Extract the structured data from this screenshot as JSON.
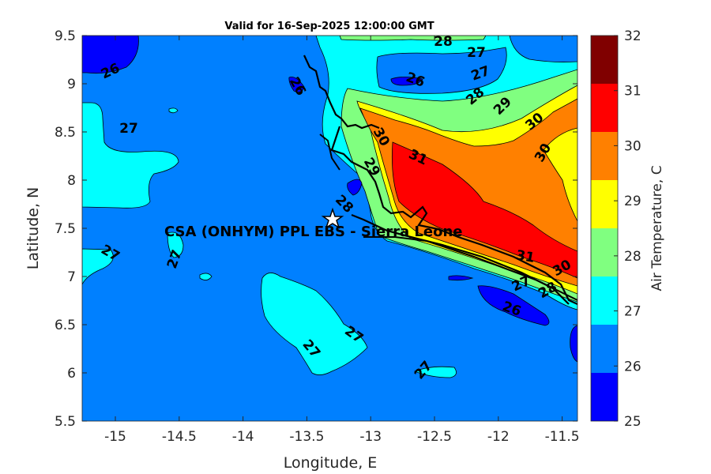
{
  "chart_data": {
    "type": "heatmap",
    "subtype": "filled-contour-map",
    "title": "Valid for 16-Sep-2025 12:00:00 GMT",
    "xlabel": "Longitude, E",
    "ylabel": "Latitude, N",
    "xlim": [
      -15.26,
      -11.38
    ],
    "ylim": [
      5.5,
      9.5
    ],
    "xticks": [
      "-15",
      "-14.5",
      "-14",
      "-13.5",
      "-13",
      "-12.5",
      "-12",
      "-11.5"
    ],
    "yticks": [
      "5.5",
      "6",
      "6.5",
      "7",
      "7.5",
      "8",
      "8.5",
      "9",
      "9.5"
    ],
    "colorbar": {
      "label": "Air Temperature, C",
      "range": [
        25,
        32
      ],
      "ticks": [
        "25",
        "26",
        "27",
        "28",
        "29",
        "30",
        "31",
        "32"
      ],
      "colors": [
        "#0000ff",
        "#0080ff",
        "#00ffff",
        "#80ff80",
        "#ffff00",
        "#ff8000",
        "#ff0000",
        "#800000"
      ]
    },
    "site": {
      "label": "CSA (ONHYM) PPL EBS - Sierra Leone",
      "lon": -13.23,
      "lat": 7.6
    },
    "contour_labels": [
      "26",
      "27",
      "26",
      "28",
      "27",
      "27",
      "26",
      "28",
      "29",
      "30",
      "30",
      "31",
      "30",
      "29",
      "28",
      "27",
      "27",
      "31",
      "30",
      "28",
      "27",
      "26",
      "27",
      "27",
      "27"
    ]
  }
}
